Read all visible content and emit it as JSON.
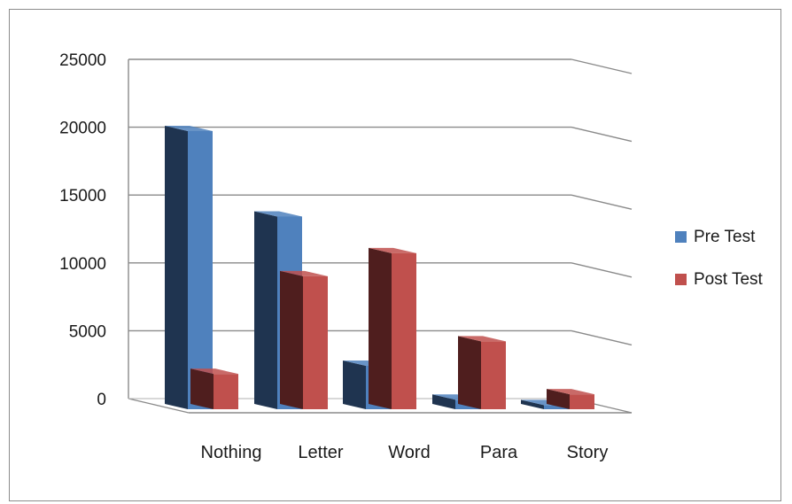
{
  "chart_data": {
    "type": "bar",
    "categories": [
      "Nothing",
      "Letter",
      "Word",
      "Para",
      "Story"
    ],
    "series": [
      {
        "name": "Pre Test",
        "values": [
          20500,
          14200,
          3200,
          700,
          300
        ],
        "color": "#4f81bd",
        "side_color": "#1f3450"
      },
      {
        "name": "Post Test",
        "values": [
          2600,
          9800,
          11500,
          5000,
          1100
        ],
        "color": "#c0504d",
        "side_color": "#4f1e1e"
      }
    ],
    "ylim": [
      0,
      25000
    ],
    "yticks": [
      "0",
      "5000",
      "10000",
      "15000",
      "20000",
      "25000"
    ],
    "grid": true,
    "legend_position": "right",
    "style": "3d-clustered-column"
  }
}
